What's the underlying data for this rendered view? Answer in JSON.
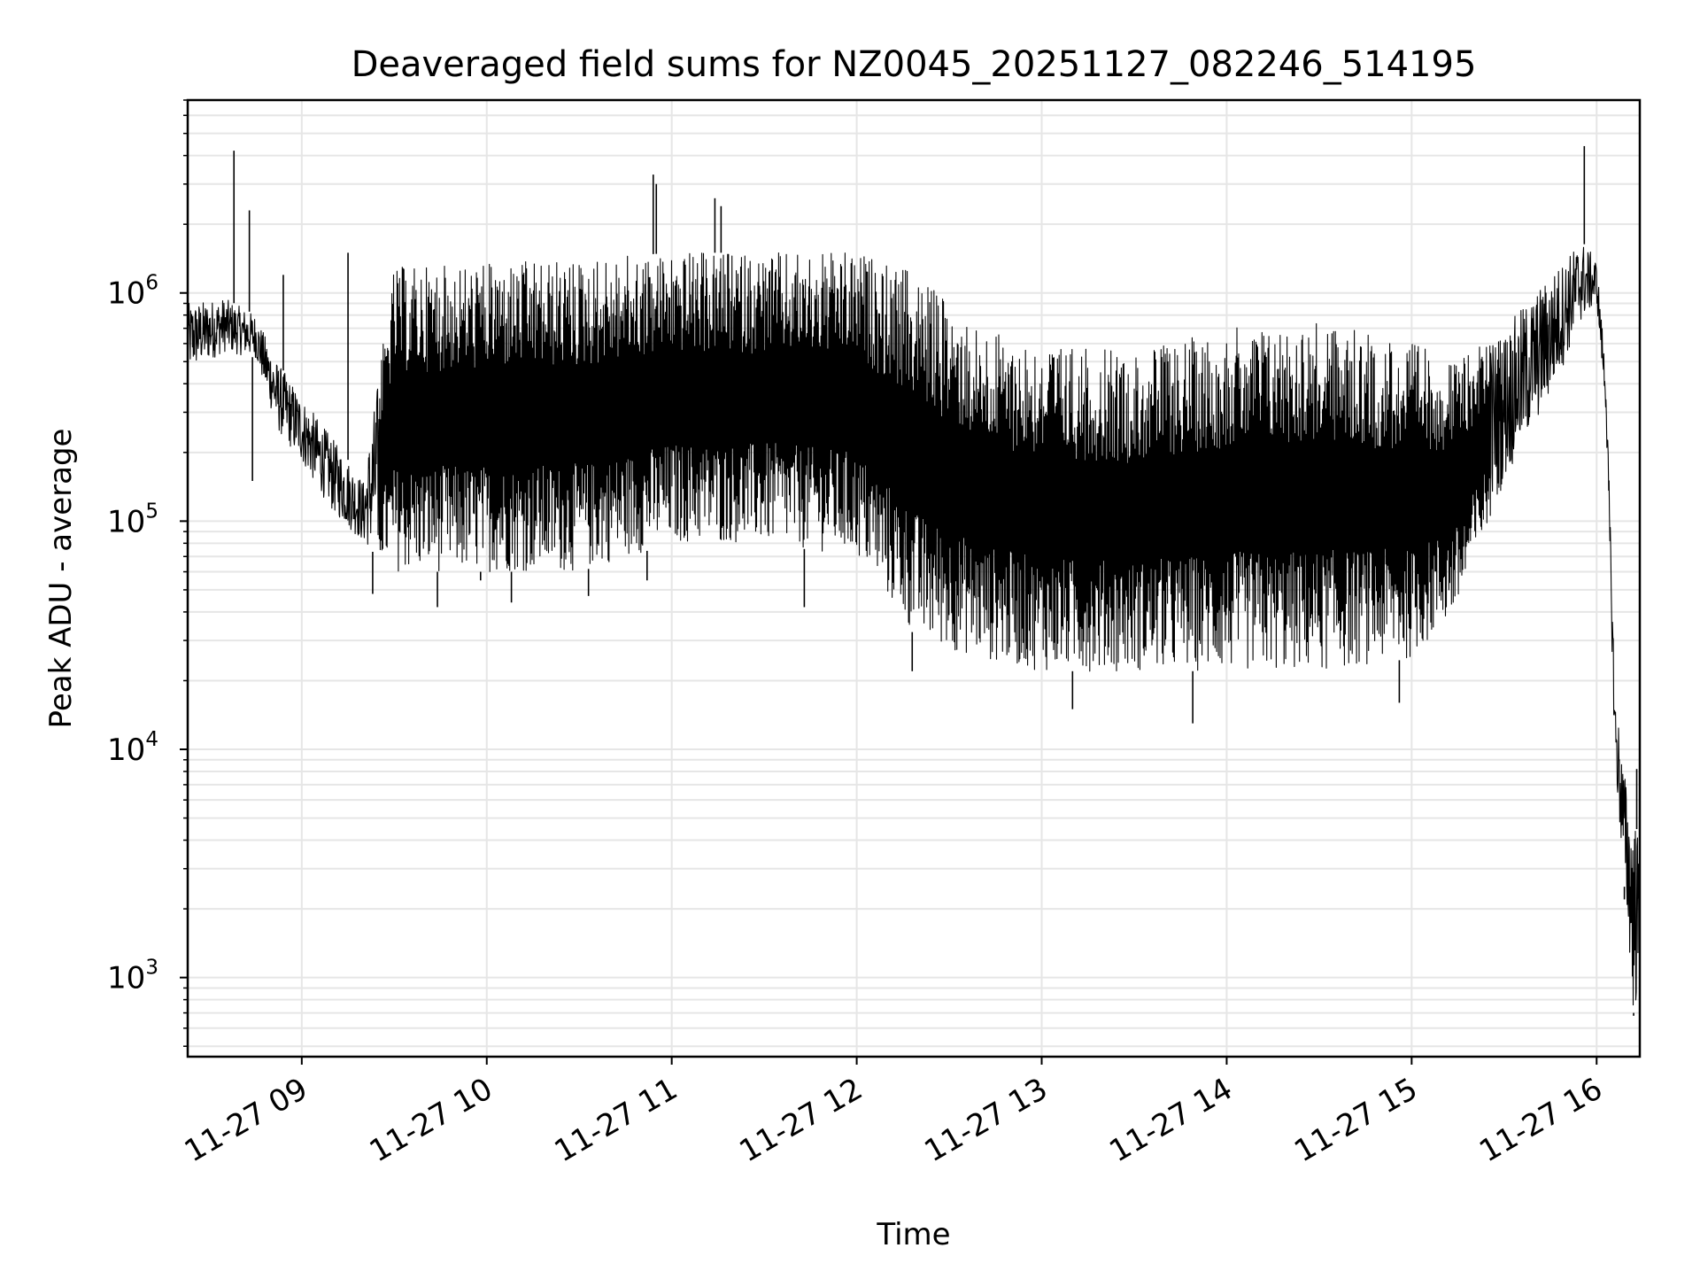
{
  "chart_data": {
    "type": "line",
    "title": "Deaveraged field sums for NZ0045_20251127_082246_514195",
    "xlabel": "Time",
    "ylabel": "Peak ADU - average",
    "x_scale": "time",
    "y_scale": "log",
    "xlim": [
      "2025-11-27 08:23",
      "2025-11-27 16:14"
    ],
    "ylim": [
      450,
      7000000
    ],
    "grid": true,
    "line_color": "#000000",
    "grid_color": "#e6e6e6",
    "x_ticks": [
      {
        "value": "2025-11-27 09:00",
        "label": "11-27 09"
      },
      {
        "value": "2025-11-27 10:00",
        "label": "11-27 10"
      },
      {
        "value": "2025-11-27 11:00",
        "label": "11-27 11"
      },
      {
        "value": "2025-11-27 12:00",
        "label": "11-27 12"
      },
      {
        "value": "2025-11-27 13:00",
        "label": "11-27 13"
      },
      {
        "value": "2025-11-27 14:00",
        "label": "11-27 14"
      },
      {
        "value": "2025-11-27 15:00",
        "label": "11-27 15"
      },
      {
        "value": "2025-11-27 16:00",
        "label": "11-27 16"
      }
    ],
    "y_ticks": [
      {
        "value": 1000,
        "base": "10",
        "exponent": "3"
      },
      {
        "value": 10000,
        "base": "10",
        "exponent": "4"
      },
      {
        "value": 100000,
        "base": "10",
        "exponent": "5"
      },
      {
        "value": 1000000,
        "base": "10",
        "exponent": "6"
      }
    ],
    "series": [
      {
        "envelope": [
          {
            "t": "2025-11-27 08:23",
            "upper": 900000,
            "lower": 450000
          },
          {
            "t": "2025-11-27 08:35",
            "upper": 950000,
            "lower": 550000
          },
          {
            "t": "2025-11-27 08:45",
            "upper": 800000,
            "lower": 520000
          },
          {
            "t": "2025-11-27 08:52",
            "upper": 500000,
            "lower": 250000
          },
          {
            "t": "2025-11-27 09:00",
            "upper": 350000,
            "lower": 180000
          },
          {
            "t": "2025-11-27 09:10",
            "upper": 230000,
            "lower": 110000
          },
          {
            "t": "2025-11-27 09:20",
            "upper": 150000,
            "lower": 80000
          },
          {
            "t": "2025-11-27 09:30",
            "upper": 1300000,
            "lower": 60000
          },
          {
            "t": "2025-11-27 10:00",
            "upper": 1350000,
            "lower": 60000
          },
          {
            "t": "2025-11-27 10:30",
            "upper": 1400000,
            "lower": 60000
          },
          {
            "t": "2025-11-27 11:00",
            "upper": 1500000,
            "lower": 80000
          },
          {
            "t": "2025-11-27 11:30",
            "upper": 1500000,
            "lower": 80000
          },
          {
            "t": "2025-11-27 12:00",
            "upper": 1500000,
            "lower": 70000
          },
          {
            "t": "2025-11-27 12:20",
            "upper": 1200000,
            "lower": 30000
          },
          {
            "t": "2025-11-27 12:40",
            "upper": 700000,
            "lower": 25000
          },
          {
            "t": "2025-11-27 13:00",
            "upper": 600000,
            "lower": 22000
          },
          {
            "t": "2025-11-27 13:30",
            "upper": 550000,
            "lower": 22000
          },
          {
            "t": "2025-11-27 14:00",
            "upper": 700000,
            "lower": 22000
          },
          {
            "t": "2025-11-27 14:30",
            "upper": 750000,
            "lower": 22000
          },
          {
            "t": "2025-11-27 15:00",
            "upper": 600000,
            "lower": 25000
          },
          {
            "t": "2025-11-27 15:15",
            "upper": 500000,
            "lower": 40000
          },
          {
            "t": "2025-11-27 15:30",
            "upper": 700000,
            "lower": 150000
          },
          {
            "t": "2025-11-27 15:45",
            "upper": 1200000,
            "lower": 350000
          },
          {
            "t": "2025-11-27 15:55",
            "upper": 1700000,
            "lower": 750000
          },
          {
            "t": "2025-11-27 16:00",
            "upper": 1400000,
            "lower": 900000
          },
          {
            "t": "2025-11-27 16:03",
            "upper": 450000,
            "lower": 300000
          },
          {
            "t": "2025-11-27 16:06",
            "upper": 18000,
            "lower": 8000
          },
          {
            "t": "2025-11-27 16:09",
            "upper": 8000,
            "lower": 2500
          },
          {
            "t": "2025-11-27 16:12",
            "upper": 5000,
            "lower": 700
          },
          {
            "t": "2025-11-27 16:14",
            "upper": 4000,
            "lower": 800
          }
        ],
        "spikes": [
          {
            "t": "2025-11-27 08:38",
            "value": 4200000
          },
          {
            "t": "2025-11-27 08:43",
            "value": 2300000
          },
          {
            "t": "2025-11-27 08:44",
            "value": 150000
          },
          {
            "t": "2025-11-27 08:54",
            "value": 1200000
          },
          {
            "t": "2025-11-27 09:15",
            "value": 1500000
          },
          {
            "t": "2025-11-27 09:23",
            "value": 48000
          },
          {
            "t": "2025-11-27 09:44",
            "value": 42000
          },
          {
            "t": "2025-11-27 09:58",
            "value": 55000
          },
          {
            "t": "2025-11-27 10:08",
            "value": 44000
          },
          {
            "t": "2025-11-27 10:33",
            "value": 47000
          },
          {
            "t": "2025-11-27 10:54",
            "value": 3300000
          },
          {
            "t": "2025-11-27 10:55",
            "value": 3000000
          },
          {
            "t": "2025-11-27 10:52",
            "value": 55000
          },
          {
            "t": "2025-11-27 11:14",
            "value": 2600000
          },
          {
            "t": "2025-11-27 11:16",
            "value": 2400000
          },
          {
            "t": "2025-11-27 11:43",
            "value": 42000
          },
          {
            "t": "2025-11-27 12:18",
            "value": 22000
          },
          {
            "t": "2025-11-27 13:10",
            "value": 15000
          },
          {
            "t": "2025-11-27 13:49",
            "value": 13000
          },
          {
            "t": "2025-11-27 14:56",
            "value": 16000
          },
          {
            "t": "2025-11-27 15:56",
            "value": 4400000
          },
          {
            "t": "2025-11-27 16:09",
            "value": 2200
          },
          {
            "t": "2025-11-27 16:12",
            "value": 680
          },
          {
            "t": "2025-11-27 16:13",
            "value": 8200
          }
        ]
      }
    ]
  }
}
